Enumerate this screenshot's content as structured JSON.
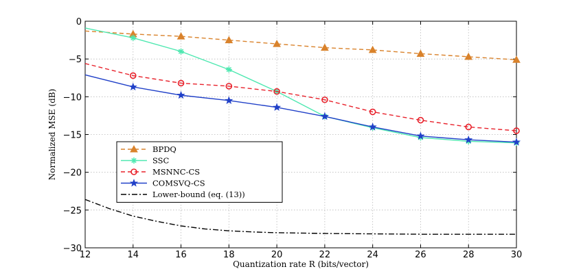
{
  "chart_data": {
    "type": "line",
    "title": "",
    "xlabel": "Quantization rate R (bits/vector)",
    "ylabel": "Normalized MSE (dB)",
    "xlim": [
      12,
      30
    ],
    "ylim": [
      -30,
      0
    ],
    "xticks": [
      12,
      14,
      16,
      18,
      20,
      22,
      24,
      26,
      28,
      30
    ],
    "yticks": [
      0,
      -5,
      -10,
      -15,
      -20,
      -25,
      -30
    ],
    "xtick_labels": [
      "12",
      "14",
      "16",
      "18",
      "20",
      "22",
      "24",
      "26",
      "28",
      "30"
    ],
    "ytick_labels": [
      "0",
      "−5",
      "−10",
      "−15",
      "−20",
      "−25",
      "−30"
    ],
    "grid": true,
    "legend_position": "left-middle",
    "series": [
      {
        "name": "BPDQ",
        "color": "#d9822b",
        "dash": "dashed",
        "marker": "triangle",
        "x": [
          12,
          14,
          16,
          18,
          20,
          22,
          24,
          26,
          28,
          30
        ],
        "y": [
          -1.3,
          -1.7,
          -2.0,
          -2.5,
          -3.0,
          -3.5,
          -3.8,
          -4.3,
          -4.7,
          -5.1
        ],
        "marker_x": [
          14,
          16,
          18,
          20,
          22,
          24,
          26,
          28,
          30
        ]
      },
      {
        "name": "SSC",
        "color": "#4de8b0",
        "dash": "solid",
        "marker": "asterisk",
        "x": [
          12,
          14,
          16,
          18,
          20,
          22,
          24,
          26,
          28,
          30
        ],
        "y": [
          -0.9,
          -2.2,
          -4.0,
          -6.4,
          -9.3,
          -12.6,
          -14.1,
          -15.4,
          -15.9,
          -16.1
        ],
        "marker_x": [
          14,
          16,
          18,
          20,
          22,
          24,
          26,
          28,
          30
        ]
      },
      {
        "name": "MSNNC-CS",
        "color": "#e8202a",
        "dash": "dashed",
        "marker": "circle",
        "x": [
          12,
          14,
          16,
          18,
          20,
          22,
          24,
          26,
          28,
          30
        ],
        "y": [
          -5.6,
          -7.2,
          -8.2,
          -8.6,
          -9.3,
          -10.4,
          -12.0,
          -13.1,
          -14.0,
          -14.5
        ],
        "marker_x": [
          14,
          16,
          18,
          20,
          22,
          24,
          26,
          28,
          30
        ]
      },
      {
        "name": "COMSVQ-CS",
        "color": "#2040c8",
        "dash": "solid",
        "marker": "star",
        "x": [
          12,
          14,
          16,
          18,
          20,
          22,
          24,
          26,
          28,
          30
        ],
        "y": [
          -7.1,
          -8.7,
          -9.8,
          -10.5,
          -11.4,
          -12.6,
          -14.0,
          -15.2,
          -15.7,
          -16.0
        ],
        "marker_x": [
          14,
          16,
          18,
          20,
          22,
          24,
          26,
          28,
          30
        ]
      },
      {
        "name": "Lower-bound (eq. (13))",
        "color": "#000000",
        "dash": "dashdot",
        "marker": "none",
        "x": [
          12,
          13,
          14,
          15,
          16,
          17,
          18,
          19,
          20,
          22,
          24,
          26,
          28,
          30
        ],
        "y": [
          -23.6,
          -24.8,
          -25.8,
          -26.5,
          -27.1,
          -27.5,
          -27.75,
          -27.9,
          -28.0,
          -28.1,
          -28.15,
          -28.2,
          -28.2,
          -28.2
        ],
        "marker_x": []
      }
    ]
  }
}
